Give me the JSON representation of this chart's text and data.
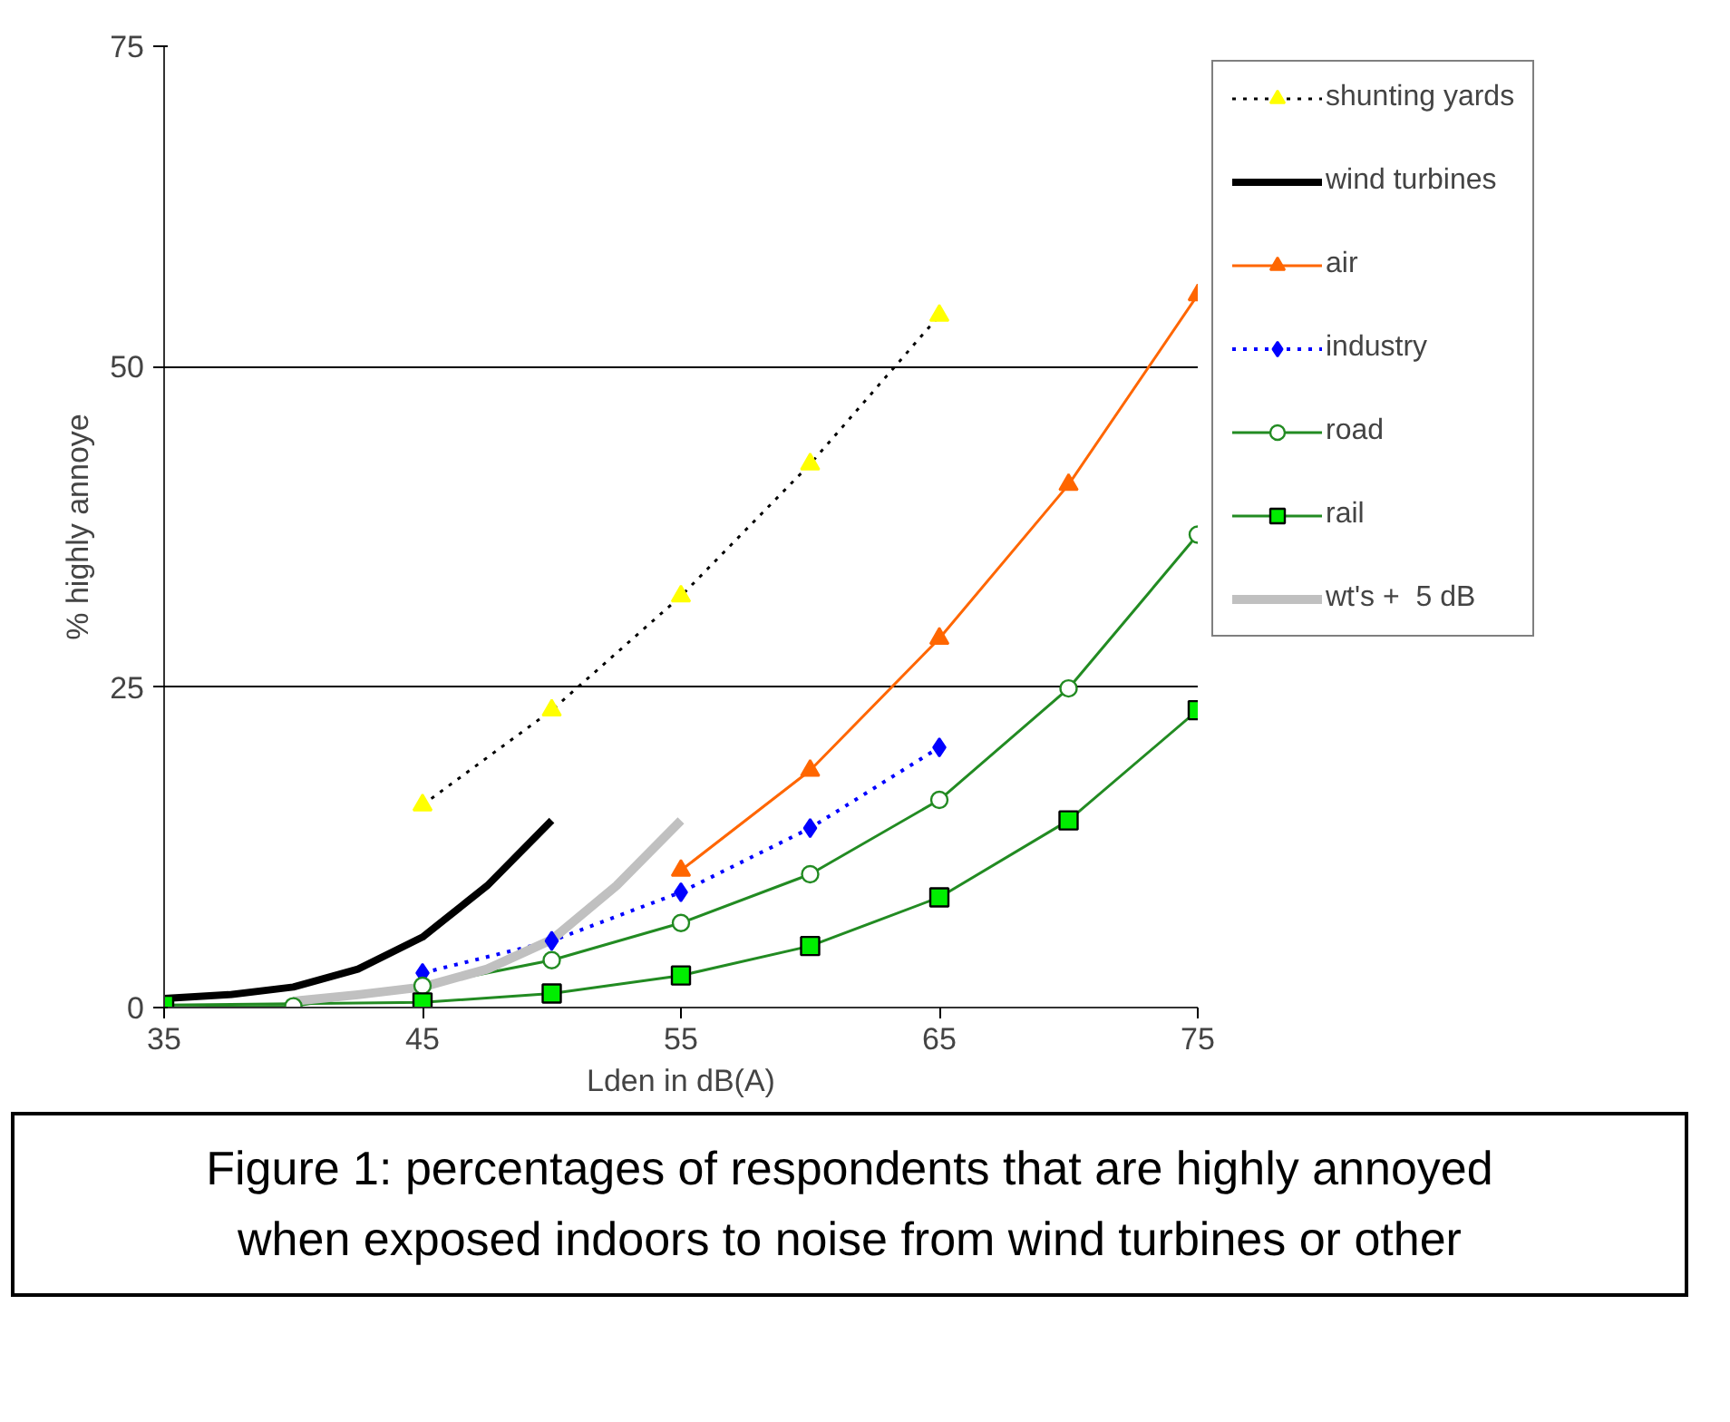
{
  "chart_data": {
    "type": "line",
    "xlabel": "Lden in dB(A)",
    "ylabel": "% highly annoye",
    "xlim": [
      35,
      75
    ],
    "ylim": [
      0,
      75
    ],
    "xticks": [
      35,
      45,
      55,
      65,
      75
    ],
    "yticks": [
      0,
      25,
      50,
      75
    ],
    "grid": "y",
    "legend": "right",
    "annotations": [
      "Figure 1: percentages of respondents that are highly annoyed\nwhen exposed indoors to noise from wind turbines or other"
    ],
    "series": [
      {
        "name": "shunting yards",
        "color": "#000000",
        "x": [
          45,
          50,
          55,
          60,
          65
        ],
        "values": [
          15.8,
          23.2,
          32.1,
          42.4,
          54.0
        ],
        "marker": "triangle",
        "line_style": "dotted"
      },
      {
        "name": "wind turbines",
        "color": "#000000",
        "x": [
          35,
          37.5,
          40,
          42.5,
          45,
          47.5,
          50
        ],
        "values": [
          0.7,
          1.0,
          1.6,
          3.0,
          5.5,
          9.5,
          14.6
        ],
        "marker": "none",
        "line_style": "solid"
      },
      {
        "name": "air",
        "color": "#ff6600",
        "x": [
          55,
          60,
          65,
          70,
          75
        ],
        "values": [
          10.7,
          18.5,
          28.8,
          40.8,
          55.6
        ],
        "marker": "triangle",
        "line_style": "solid"
      },
      {
        "name": "industry",
        "color": "#0000ff",
        "x": [
          45,
          50,
          55,
          60,
          65
        ],
        "values": [
          2.7,
          5.2,
          9.0,
          14.0,
          20.3
        ],
        "marker": "diamond",
        "line_style": "dotted"
      },
      {
        "name": "road",
        "color": "#228b22",
        "x": [
          35,
          40,
          45,
          50,
          55,
          60,
          65,
          70,
          75
        ],
        "values": [
          0,
          0.1,
          1.7,
          3.7,
          6.6,
          10.4,
          16.2,
          24.9,
          36.9
        ],
        "marker": "circle",
        "line_style": "solid"
      },
      {
        "name": "rail",
        "color": "#228b22",
        "x": [
          35,
          45,
          50,
          55,
          60,
          65,
          70,
          75
        ],
        "values": [
          0.2,
          0.4,
          1.1,
          2.5,
          4.8,
          8.6,
          14.6,
          23.2
        ],
        "marker": "square",
        "line_style": "solid"
      },
      {
        "name": "wt's +  5 dB",
        "color": "#c0c0c0",
        "x": [
          40,
          42.5,
          45,
          47.5,
          50,
          52.5,
          55
        ],
        "values": [
          0.5,
          1.0,
          1.6,
          3.0,
          5.3,
          9.5,
          14.6
        ],
        "marker": "none",
        "line_style": "solid"
      }
    ]
  }
}
